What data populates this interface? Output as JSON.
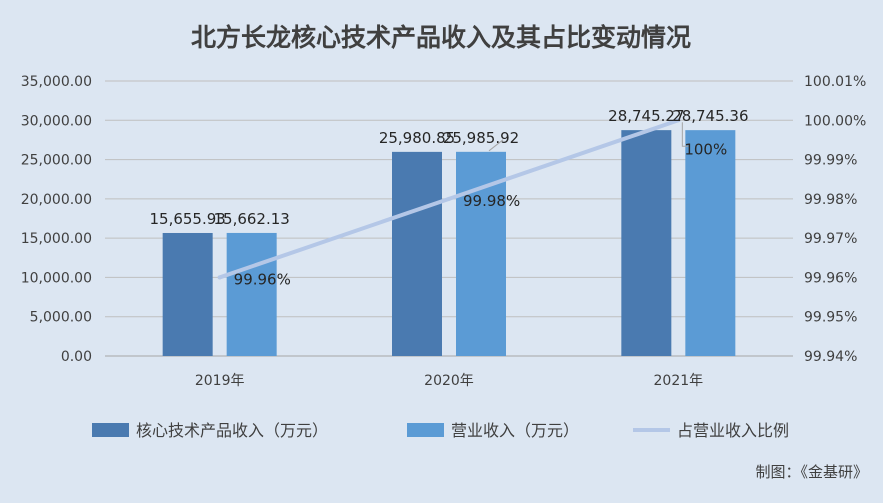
{
  "chart_data": {
    "type": "bar",
    "title": "北方长龙核心技术产品收入及其占比变动情况",
    "categories": [
      "2019年",
      "2020年",
      "2021年"
    ],
    "series": [
      {
        "name": "核心技术产品收入（万元）",
        "type": "bar",
        "axis": "left",
        "color": "#4a7ab0",
        "values": [
          15655.93,
          25980.85,
          28745.27
        ],
        "labels": [
          "15,655.93",
          "25,980.85",
          "28,745.27"
        ]
      },
      {
        "name": "营业收入（万元）",
        "type": "bar",
        "axis": "left",
        "color": "#5b9bd5",
        "values": [
          15662.13,
          25985.92,
          28745.36
        ],
        "labels": [
          "15,662.13",
          "25,985.92",
          "28,745.36"
        ]
      },
      {
        "name": "占营业收入比例",
        "type": "line",
        "axis": "right",
        "color": "#b4c7e7",
        "values": [
          99.96,
          99.98,
          100.0
        ],
        "labels": [
          "99.96%",
          "99.98%",
          "100%"
        ]
      }
    ],
    "y_left": {
      "min": 0,
      "max": 35000,
      "ticks": [
        "0.00",
        "5,000.00",
        "10,000.00",
        "15,000.00",
        "20,000.00",
        "25,000.00",
        "30,000.00",
        "35,000.00"
      ]
    },
    "y_right": {
      "min": 99.94,
      "max": 100.01,
      "ticks": [
        "99.94%",
        "99.95%",
        "99.96%",
        "99.97%",
        "99.98%",
        "99.99%",
        "100.00%",
        "100.01%"
      ]
    },
    "grid": true,
    "legend": "bottom",
    "source": "制图：《金基研》"
  }
}
